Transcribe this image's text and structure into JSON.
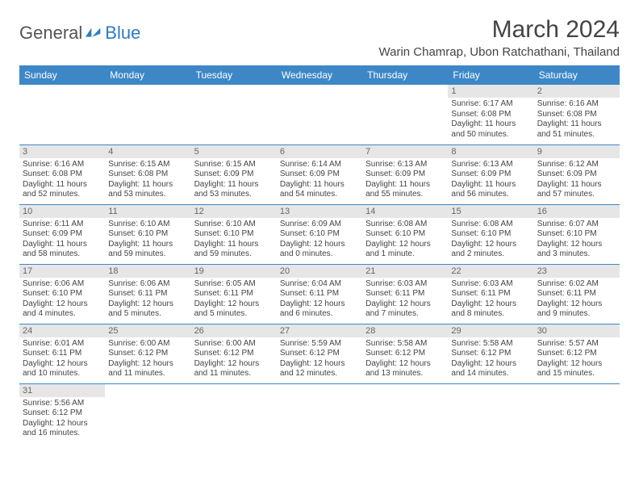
{
  "branding": {
    "logo_part1": "General",
    "logo_part2": "Blue",
    "logo_color": "#2f7bbf"
  },
  "header": {
    "month_title": "March 2024",
    "location": "Warin Chamrap, Ubon Ratchathani, Thailand"
  },
  "colors": {
    "header_bg": "#3d87c7",
    "header_fg": "#ffffff",
    "daynum_bg": "#e6e6e6",
    "daynum_fg": "#666666",
    "cell_border": "#3d87c7",
    "body_bg": "#ffffff",
    "text": "#444444"
  },
  "weekdays": [
    "Sunday",
    "Monday",
    "Tuesday",
    "Wednesday",
    "Thursday",
    "Friday",
    "Saturday"
  ],
  "weeks": [
    [
      null,
      null,
      null,
      null,
      null,
      {
        "n": "1",
        "sunrise": "6:17 AM",
        "sunset": "6:08 PM",
        "daylight": "11 hours and 50 minutes."
      },
      {
        "n": "2",
        "sunrise": "6:16 AM",
        "sunset": "6:08 PM",
        "daylight": "11 hours and 51 minutes."
      }
    ],
    [
      {
        "n": "3",
        "sunrise": "6:16 AM",
        "sunset": "6:08 PM",
        "daylight": "11 hours and 52 minutes."
      },
      {
        "n": "4",
        "sunrise": "6:15 AM",
        "sunset": "6:08 PM",
        "daylight": "11 hours and 53 minutes."
      },
      {
        "n": "5",
        "sunrise": "6:15 AM",
        "sunset": "6:09 PM",
        "daylight": "11 hours and 53 minutes."
      },
      {
        "n": "6",
        "sunrise": "6:14 AM",
        "sunset": "6:09 PM",
        "daylight": "11 hours and 54 minutes."
      },
      {
        "n": "7",
        "sunrise": "6:13 AM",
        "sunset": "6:09 PM",
        "daylight": "11 hours and 55 minutes."
      },
      {
        "n": "8",
        "sunrise": "6:13 AM",
        "sunset": "6:09 PM",
        "daylight": "11 hours and 56 minutes."
      },
      {
        "n": "9",
        "sunrise": "6:12 AM",
        "sunset": "6:09 PM",
        "daylight": "11 hours and 57 minutes."
      }
    ],
    [
      {
        "n": "10",
        "sunrise": "6:11 AM",
        "sunset": "6:09 PM",
        "daylight": "11 hours and 58 minutes."
      },
      {
        "n": "11",
        "sunrise": "6:10 AM",
        "sunset": "6:10 PM",
        "daylight": "11 hours and 59 minutes."
      },
      {
        "n": "12",
        "sunrise": "6:10 AM",
        "sunset": "6:10 PM",
        "daylight": "11 hours and 59 minutes."
      },
      {
        "n": "13",
        "sunrise": "6:09 AM",
        "sunset": "6:10 PM",
        "daylight": "12 hours and 0 minutes."
      },
      {
        "n": "14",
        "sunrise": "6:08 AM",
        "sunset": "6:10 PM",
        "daylight": "12 hours and 1 minute."
      },
      {
        "n": "15",
        "sunrise": "6:08 AM",
        "sunset": "6:10 PM",
        "daylight": "12 hours and 2 minutes."
      },
      {
        "n": "16",
        "sunrise": "6:07 AM",
        "sunset": "6:10 PM",
        "daylight": "12 hours and 3 minutes."
      }
    ],
    [
      {
        "n": "17",
        "sunrise": "6:06 AM",
        "sunset": "6:10 PM",
        "daylight": "12 hours and 4 minutes."
      },
      {
        "n": "18",
        "sunrise": "6:06 AM",
        "sunset": "6:11 PM",
        "daylight": "12 hours and 5 minutes."
      },
      {
        "n": "19",
        "sunrise": "6:05 AM",
        "sunset": "6:11 PM",
        "daylight": "12 hours and 5 minutes."
      },
      {
        "n": "20",
        "sunrise": "6:04 AM",
        "sunset": "6:11 PM",
        "daylight": "12 hours and 6 minutes."
      },
      {
        "n": "21",
        "sunrise": "6:03 AM",
        "sunset": "6:11 PM",
        "daylight": "12 hours and 7 minutes."
      },
      {
        "n": "22",
        "sunrise": "6:03 AM",
        "sunset": "6:11 PM",
        "daylight": "12 hours and 8 minutes."
      },
      {
        "n": "23",
        "sunrise": "6:02 AM",
        "sunset": "6:11 PM",
        "daylight": "12 hours and 9 minutes."
      }
    ],
    [
      {
        "n": "24",
        "sunrise": "6:01 AM",
        "sunset": "6:11 PM",
        "daylight": "12 hours and 10 minutes."
      },
      {
        "n": "25",
        "sunrise": "6:00 AM",
        "sunset": "6:12 PM",
        "daylight": "12 hours and 11 minutes."
      },
      {
        "n": "26",
        "sunrise": "6:00 AM",
        "sunset": "6:12 PM",
        "daylight": "12 hours and 11 minutes."
      },
      {
        "n": "27",
        "sunrise": "5:59 AM",
        "sunset": "6:12 PM",
        "daylight": "12 hours and 12 minutes."
      },
      {
        "n": "28",
        "sunrise": "5:58 AM",
        "sunset": "6:12 PM",
        "daylight": "12 hours and 13 minutes."
      },
      {
        "n": "29",
        "sunrise": "5:58 AM",
        "sunset": "6:12 PM",
        "daylight": "12 hours and 14 minutes."
      },
      {
        "n": "30",
        "sunrise": "5:57 AM",
        "sunset": "6:12 PM",
        "daylight": "12 hours and 15 minutes."
      }
    ],
    [
      {
        "n": "31",
        "sunrise": "5:56 AM",
        "sunset": "6:12 PM",
        "daylight": "12 hours and 16 minutes."
      },
      null,
      null,
      null,
      null,
      null,
      null
    ]
  ],
  "labels": {
    "sunrise_prefix": "Sunrise: ",
    "sunset_prefix": "Sunset: ",
    "daylight_prefix": "Daylight: "
  }
}
